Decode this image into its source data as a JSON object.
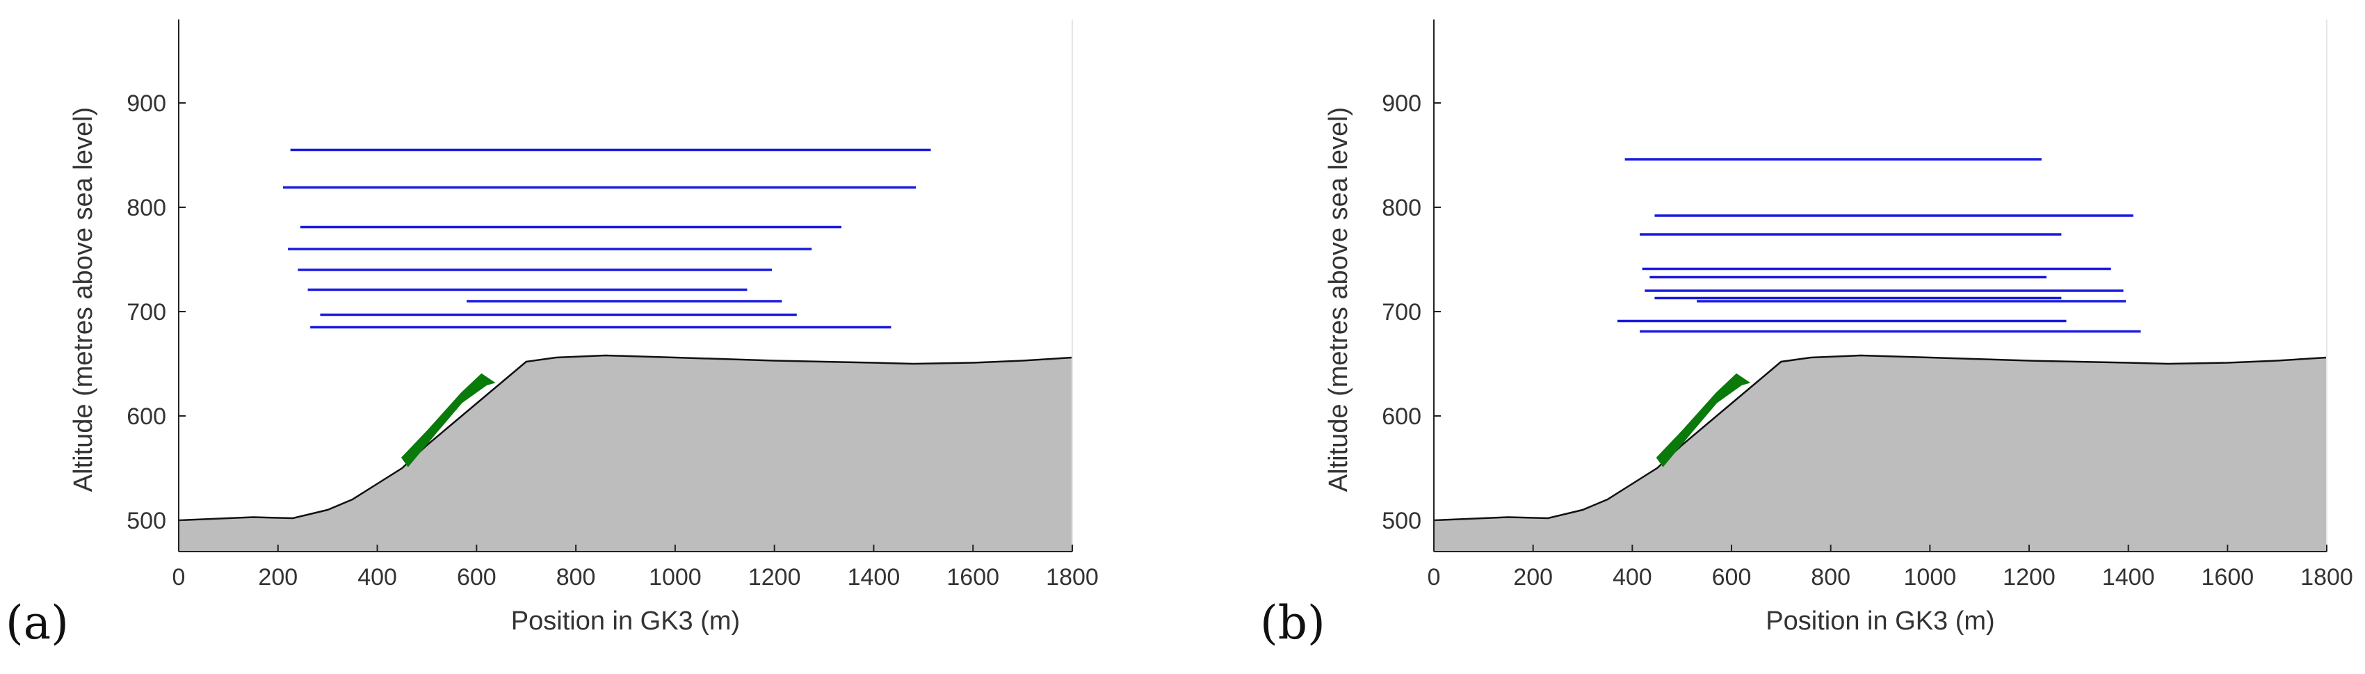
{
  "chart_data": [
    {
      "type": "line",
      "panel_label": "(a)",
      "xlabel": "Position in GK3 (m)",
      "ylabel": "Altitude (metres above sea level)",
      "xlim": [
        0,
        1800
      ],
      "ylim": [
        470,
        980
      ],
      "xticks": [
        0,
        200,
        400,
        600,
        800,
        1000,
        1200,
        1400,
        1600,
        1800
      ],
      "yticks": [
        500,
        600,
        700,
        800,
        900
      ],
      "grid": false,
      "terrain": {
        "x": [
          0,
          100,
          150,
          230,
          300,
          350,
          400,
          450,
          500,
          550,
          600,
          650,
          700,
          760,
          860,
          1000,
          1200,
          1400,
          1480,
          1600,
          1700,
          1800
        ],
        "y": [
          500,
          502,
          503,
          502,
          510,
          520,
          535,
          550,
          572,
          592,
          612,
          632,
          652,
          656,
          658,
          656,
          653,
          651,
          650,
          651,
          653,
          656
        ],
        "color": "#bdbdbd"
      },
      "green_zone": {
        "x": [
          450,
          500,
          570,
          610,
          635,
          620,
          570,
          520,
          462
        ],
        "y": [
          560,
          585,
          622,
          640,
          632,
          630,
          613,
          585,
          552
        ],
        "color": "#0a7a0a"
      },
      "horizontal_lines_color": "#1a1adf",
      "horizontal_lines": [
        {
          "y": 855,
          "x1": 225,
          "x2": 1515
        },
        {
          "y": 819,
          "x1": 210,
          "x2": 1485
        },
        {
          "y": 781,
          "x1": 245,
          "x2": 1335
        },
        {
          "y": 760,
          "x1": 220,
          "x2": 1275
        },
        {
          "y": 740,
          "x1": 240,
          "x2": 1195
        },
        {
          "y": 721,
          "x1": 260,
          "x2": 1145
        },
        {
          "y": 710,
          "x1": 580,
          "x2": 1215
        },
        {
          "y": 697,
          "x1": 285,
          "x2": 1245
        },
        {
          "y": 685,
          "x1": 265,
          "x2": 1435
        }
      ]
    },
    {
      "type": "line",
      "panel_label": "(b)",
      "xlabel": "Position in GK3 (m)",
      "ylabel": "Altitude (metres above sea level)",
      "xlim": [
        0,
        1800
      ],
      "ylim": [
        470,
        980
      ],
      "xticks": [
        0,
        200,
        400,
        600,
        800,
        1000,
        1200,
        1400,
        1600,
        1800
      ],
      "yticks": [
        500,
        600,
        700,
        800,
        900
      ],
      "grid": false,
      "terrain": {
        "x": [
          0,
          100,
          150,
          230,
          300,
          350,
          400,
          450,
          500,
          550,
          600,
          650,
          700,
          760,
          860,
          1000,
          1200,
          1400,
          1480,
          1600,
          1700,
          1800
        ],
        "y": [
          500,
          502,
          503,
          502,
          510,
          520,
          535,
          550,
          572,
          592,
          612,
          632,
          652,
          656,
          658,
          656,
          653,
          651,
          650,
          651,
          653,
          656
        ],
        "color": "#bdbdbd"
      },
      "green_zone": {
        "x": [
          450,
          500,
          570,
          610,
          635,
          620,
          570,
          520,
          462
        ],
        "y": [
          560,
          585,
          622,
          640,
          632,
          630,
          613,
          585,
          552
        ],
        "color": "#0a7a0a"
      },
      "horizontal_lines_color": "#1a1adf",
      "horizontal_lines": [
        {
          "y": 846,
          "x1": 385,
          "x2": 1225
        },
        {
          "y": 792,
          "x1": 445,
          "x2": 1410
        },
        {
          "y": 774,
          "x1": 415,
          "x2": 1265
        },
        {
          "y": 741,
          "x1": 420,
          "x2": 1365
        },
        {
          "y": 733,
          "x1": 435,
          "x2": 1235
        },
        {
          "y": 720,
          "x1": 425,
          "x2": 1390
        },
        {
          "y": 713,
          "x1": 445,
          "x2": 1265
        },
        {
          "y": 710,
          "x1": 530,
          "x2": 1395
        },
        {
          "y": 691,
          "x1": 370,
          "x2": 1275
        },
        {
          "y": 681,
          "x1": 415,
          "x2": 1425
        }
      ]
    }
  ]
}
